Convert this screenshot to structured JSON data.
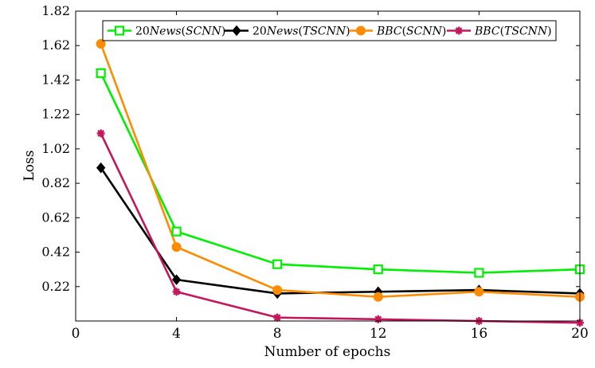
{
  "chart_data": {
    "type": "line",
    "xlabel": "Number of epochs",
    "ylabel": "Loss",
    "xlim": [
      0,
      20
    ],
    "ylim": [
      0.02,
      1.82
    ],
    "xticks": [
      "0",
      "4",
      "8",
      "12",
      "16",
      "20"
    ],
    "yticks": [
      "0.22",
      "0.42",
      "0.62",
      "0.82",
      "1.02",
      "1.22",
      "1.42",
      "1.62",
      "1.82"
    ],
    "grid": false,
    "legend_position": "top",
    "series": [
      {
        "name_main": "20",
        "name_italic": "News",
        "name_paren": "SCNN",
        "color": "#00ee00",
        "marker": "square-open",
        "x": [
          1,
          4,
          8,
          12,
          16,
          20
        ],
        "y": [
          1.46,
          0.54,
          0.35,
          0.32,
          0.3,
          0.32
        ]
      },
      {
        "name_main": "20",
        "name_italic": "News",
        "name_paren": "TSCNN",
        "color": "#000000",
        "marker": "diamond",
        "x": [
          1,
          4,
          8,
          12,
          16,
          20
        ],
        "y": [
          0.91,
          0.26,
          0.18,
          0.19,
          0.2,
          0.18
        ]
      },
      {
        "name_main": "",
        "name_italic": "BBC",
        "name_paren": "SCNN",
        "color": "#ff8c00",
        "marker": "circle",
        "x": [
          1,
          4,
          8,
          12,
          16,
          20
        ],
        "y": [
          1.63,
          0.45,
          0.2,
          0.16,
          0.19,
          0.16
        ]
      },
      {
        "name_main": "",
        "name_italic": "BBC",
        "name_paren": "TSCNN",
        "color": "#c2185b",
        "marker": "star",
        "x": [
          1,
          4,
          8,
          12,
          16,
          20
        ],
        "y": [
          1.11,
          0.19,
          0.04,
          0.03,
          0.02,
          0.01
        ]
      }
    ]
  }
}
